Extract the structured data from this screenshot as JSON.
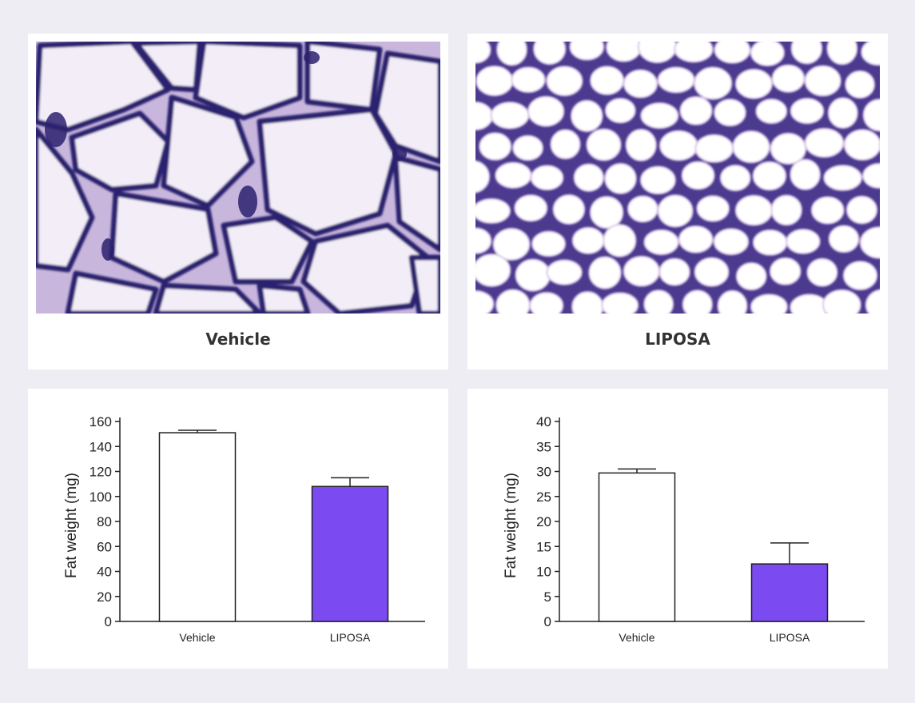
{
  "panels": {
    "top_left": {
      "caption": "Vehicle"
    },
    "top_right": {
      "caption": "LIPOSA"
    }
  },
  "colors": {
    "page_background": "#ededf3",
    "panel_background": "#ffffff",
    "liposa_bar": "#7b4af0",
    "vehicle_bar": "#ffffff",
    "stain_dark": "#2a1f6e",
    "stain_light": "#c9b4dc",
    "adipocyte": "#f4eef8"
  },
  "chart_data": [
    {
      "type": "bar",
      "categories": [
        "Vehicle",
        "LIPOSA"
      ],
      "values": [
        151,
        108
      ],
      "errors": [
        2,
        7
      ],
      "ylabel": "Fat weight (mg)",
      "xlabel": "",
      "ylim": [
        0,
        160
      ],
      "yticks": [
        0,
        20,
        40,
        60,
        80,
        100,
        120,
        140,
        160
      ],
      "bar_colors": [
        "#ffffff",
        "#7b4af0"
      ],
      "grid": false
    },
    {
      "type": "bar",
      "categories": [
        "Vehicle",
        "LIPOSA"
      ],
      "values": [
        29.7,
        11.5
      ],
      "errors": [
        0.8,
        4.2
      ],
      "ylabel": "Fat weight (mg)",
      "xlabel": "",
      "ylim": [
        0,
        40
      ],
      "yticks": [
        0,
        5,
        10,
        15,
        20,
        25,
        30,
        35,
        40
      ],
      "bar_colors": [
        "#ffffff",
        "#7b4af0"
      ],
      "grid": false
    }
  ]
}
